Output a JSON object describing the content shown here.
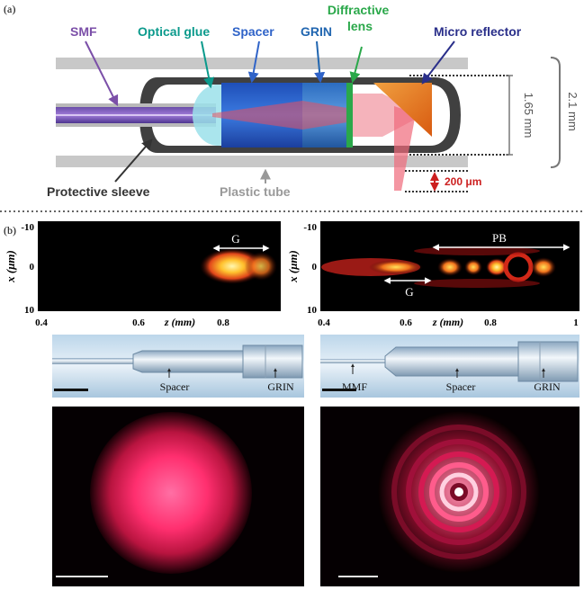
{
  "panel_a": {
    "panel_label": "(a)",
    "labels": {
      "smf": "SMF",
      "optical_glue": "Optical glue",
      "spacer": "Spacer",
      "grin": "GRIN",
      "diffractive_lens": "Diffractive\nlens",
      "micro_reflector": "Micro reflector",
      "protective_sleeve": "Protective sleeve",
      "plastic_tube": "Plastic tube"
    },
    "dimensions": {
      "d1": "1.65 mm",
      "d2": "2.1 mm",
      "d3": "200 μm"
    }
  },
  "panel_b": {
    "panel_label": "(b)",
    "axis": {
      "x_label": "x (μm)",
      "z_label": "z (mm)",
      "y_ticks": [
        "-10",
        "0",
        "10"
      ],
      "left_z_ticks": [
        "0.4",
        "0.6",
        "0.8"
      ],
      "right_z_ticks": [
        "0.4",
        "0.6",
        "0.8",
        "1"
      ]
    },
    "annotations": {
      "g": "G",
      "pb": "PB"
    },
    "photo_labels": {
      "spacer": "Spacer",
      "grin": "GRIN",
      "mmf": "MMF"
    }
  },
  "colors": {
    "smf": "#7b4fa8",
    "glue": "#0b9a8c",
    "spacer": "#2f63c8",
    "grin": "#2166b0",
    "lens": "#2aa84a",
    "reflector": "#2a2f8a",
    "dim": "#777777",
    "red_dim": "#cc1f1f",
    "heat_hot": "#ffe27a",
    "beam_red": "#e8334d"
  }
}
